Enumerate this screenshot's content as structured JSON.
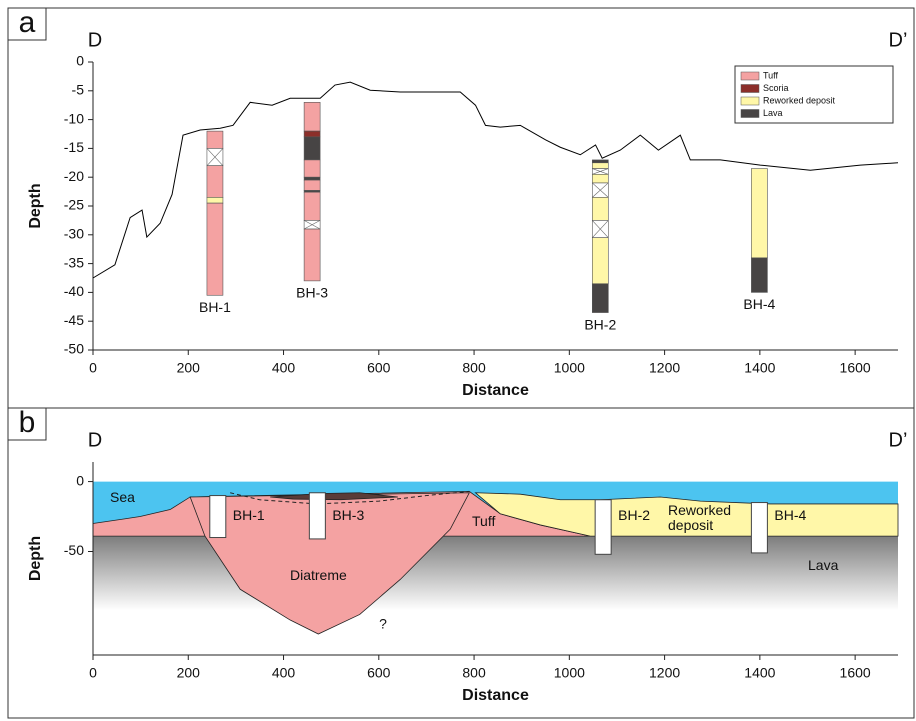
{
  "chart_data": [
    {
      "type": "line",
      "panel_label": "a",
      "left_label": "D",
      "right_label": "D’",
      "x_label": "Distance",
      "y_label": "Depth",
      "xlim": [
        0,
        1690
      ],
      "xticks": [
        0,
        200,
        400,
        600,
        800,
        1000,
        1200,
        1400,
        1600
      ],
      "ylim": [
        -50,
        0
      ],
      "yticks": [
        0,
        -5,
        -10,
        -15,
        -20,
        -25,
        -30,
        -35,
        -40,
        -45,
        -50
      ],
      "color": "#000000",
      "x": [
        0,
        46,
        78,
        103,
        113,
        141,
        166,
        189,
        225,
        267,
        294,
        330,
        376,
        414,
        477,
        508,
        540,
        582,
        645,
        771,
        803,
        824,
        855,
        897,
        950,
        981,
        1023,
        1055,
        1069,
        1107,
        1149,
        1187,
        1233,
        1254,
        1317,
        1401,
        1506,
        1611,
        1690
      ],
      "values": [
        -37.5,
        -35.2,
        -27,
        -25.7,
        -30.4,
        -28,
        -23,
        -12.7,
        -11.8,
        -11.5,
        -11,
        -7,
        -7.5,
        -6.3,
        -6.3,
        -4,
        -3.5,
        -4.9,
        -5.2,
        -5.2,
        -7.5,
        -11,
        -11.3,
        -11,
        -13.5,
        -14.8,
        -16.1,
        -14.4,
        -16.7,
        -15.3,
        -12.7,
        -15.3,
        -12.7,
        -17,
        -17,
        -17.9,
        -18.8,
        -17.9,
        -17.5
      ],
      "legend_position": "upper right",
      "legend": [
        {
          "name": "Tuff",
          "color": "#f4a2a2"
        },
        {
          "name": "Scoria",
          "color": "#8c2f2a"
        },
        {
          "name": "Reworked deposit",
          "color": "#fff7a8"
        },
        {
          "name": "Lava",
          "color": "#474444"
        }
      ],
      "boreholes": [
        {
          "name": "BH-1",
          "x": 256,
          "layers": [
            {
              "top": -12,
              "bottom": -15,
              "unit": 0
            },
            {
              "top": -15,
              "bottom": -18,
              "unit": null
            },
            {
              "top": -18,
              "bottom": -23.5,
              "unit": 0
            },
            {
              "top": -23.5,
              "bottom": -24.5,
              "unit": 2
            },
            {
              "top": -24.5,
              "bottom": -40.5,
              "unit": 0
            }
          ]
        },
        {
          "name": "BH-3",
          "x": 460,
          "layers": [
            {
              "top": -7,
              "bottom": -12,
              "unit": 0
            },
            {
              "top": -12,
              "bottom": -13,
              "unit": 1
            },
            {
              "top": -13,
              "bottom": -17,
              "unit": 3
            },
            {
              "top": -17,
              "bottom": -20,
              "unit": 0
            },
            {
              "top": -20,
              "bottom": -20.5,
              "unit": 3
            },
            {
              "top": -20.5,
              "bottom": -22.3,
              "unit": 0
            },
            {
              "top": -22.3,
              "bottom": -22.6,
              "unit": 3
            },
            {
              "top": -22.6,
              "bottom": -27.5,
              "unit": 0
            },
            {
              "top": -27.5,
              "bottom": -29,
              "unit": null
            },
            {
              "top": -29,
              "bottom": -38,
              "unit": 0
            }
          ]
        },
        {
          "name": "BH-2",
          "x": 1065,
          "layers": [
            {
              "top": -17,
              "bottom": -17.5,
              "unit": 3
            },
            {
              "top": -17.5,
              "bottom": -18.5,
              "unit": 2
            },
            {
              "top": -18.5,
              "bottom": -19.5,
              "unit": null
            },
            {
              "top": -19.5,
              "bottom": -21,
              "unit": 2
            },
            {
              "top": -21,
              "bottom": -23.5,
              "unit": null
            },
            {
              "top": -23.5,
              "bottom": -27.5,
              "unit": 2
            },
            {
              "top": -27.5,
              "bottom": -30.5,
              "unit": null
            },
            {
              "top": -30.5,
              "bottom": -38.5,
              "unit": 2
            },
            {
              "top": -38.5,
              "bottom": -43.5,
              "unit": 3
            }
          ]
        },
        {
          "name": "BH-4",
          "x": 1399,
          "layers": [
            {
              "top": -18.5,
              "bottom": -34,
              "unit": 2
            },
            {
              "top": -34,
              "bottom": -40,
              "unit": 3
            }
          ]
        }
      ]
    },
    {
      "type": "section",
      "panel_label": "b",
      "left_label": "D",
      "right_label": "D’",
      "x_label": "Distance",
      "y_label": "Depth",
      "xlim": [
        0,
        1690
      ],
      "xticks": [
        0,
        200,
        400,
        600,
        800,
        1000,
        1200,
        1400,
        1600
      ],
      "ylim": [
        -124,
        14
      ],
      "yticks": [
        0,
        -50
      ],
      "regions": [
        {
          "label": "Sea",
          "color": "#4cc4f0",
          "x": [
            0,
            1690,
            1690,
            0
          ],
          "y": [
            0,
            0,
            -39,
            -39
          ]
        },
        {
          "label": "Lava",
          "color": "#7d7d7d",
          "gradient": true,
          "x": [
            0,
            1690,
            1690,
            0
          ],
          "y": [
            -39,
            -39,
            -92,
            -92
          ]
        },
        {
          "label": "Tuff",
          "color": "#f4a2a2",
          "x": [
            0,
            99,
            162,
            204,
            790,
            855,
            939,
            1044,
            0
          ],
          "y": [
            -30,
            -25,
            -20,
            -11,
            -7,
            -23,
            -31,
            -39,
            -39
          ]
        },
        {
          "label": "Diatreme",
          "color": "#f4a2a2",
          "x": [
            204,
            235,
            309,
            414,
            473,
            560,
            645,
            750,
            790
          ],
          "y": [
            -11,
            -39,
            -77,
            -99,
            -109,
            -95,
            -70,
            -34,
            -8
          ]
        },
        {
          "label": "Reworked deposit",
          "color": "#fff7a8",
          "x": [
            803,
            897,
            981,
            1065,
            1191,
            1275,
            1422,
            1690,
            1690,
            1044,
            939,
            855
          ],
          "y": [
            -8,
            -9,
            -13,
            -13,
            -11,
            -14,
            -16,
            -16,
            -39,
            -39,
            -31,
            -23
          ]
        },
        {
          "color": "#5a3c38",
          "x": [
            372,
            480,
            560,
            640,
            520,
            420
          ],
          "y": [
            -11,
            -8.5,
            -8,
            -11,
            -13,
            -12.5
          ]
        }
      ],
      "boundary": {
        "x": [
          288,
          350,
          470,
          600,
          700,
          790
        ],
        "y": [
          -8,
          -13,
          -16,
          -14,
          -10,
          -7
        ]
      },
      "boreholes": [
        {
          "name": "BH-1",
          "x": 262,
          "top": -10,
          "bottom": -40
        },
        {
          "name": "BH-3",
          "x": 471,
          "top": -8,
          "bottom": -41
        },
        {
          "name": "BH-2",
          "x": 1071,
          "top": -13,
          "bottom": -52
        },
        {
          "name": "BH-4",
          "x": 1399,
          "top": -15,
          "bottom": -51
        }
      ],
      "annotation": "?"
    }
  ]
}
